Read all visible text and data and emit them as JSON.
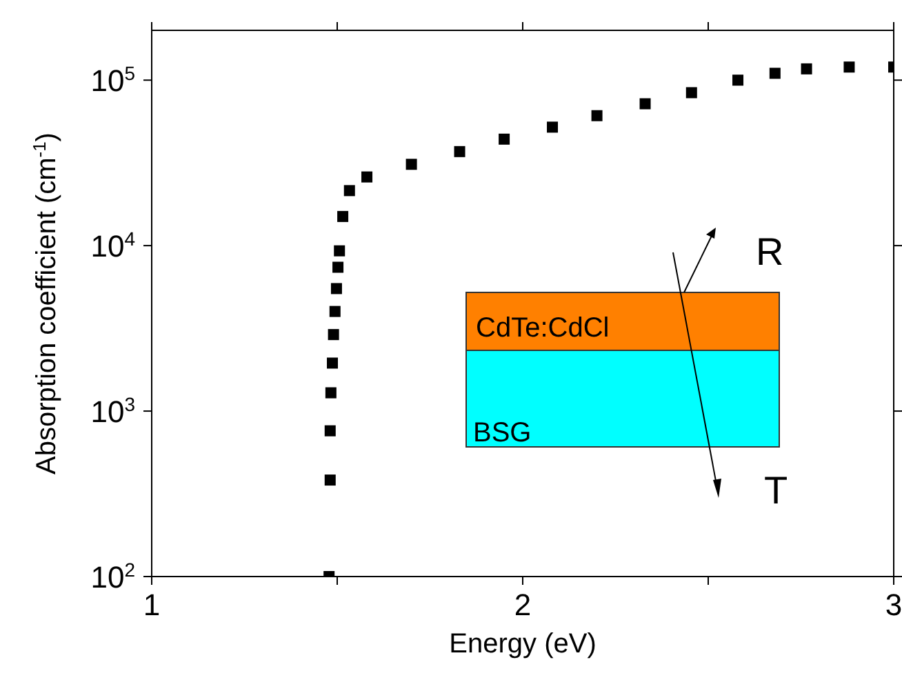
{
  "chart_data": {
    "type": "scatter",
    "xlabel": "Energy (eV)",
    "ylabel": "Absorption coefficient (cm$^{-1}$)",
    "x": [
      1.478,
      1.481,
      1.481,
      1.483,
      1.487,
      1.49,
      1.494,
      1.498,
      1.502,
      1.506,
      1.515,
      1.533,
      1.58,
      1.7,
      1.83,
      1.95,
      2.08,
      2.2,
      2.33,
      2.455,
      2.58,
      2.68,
      2.765,
      2.88,
      3.0
    ],
    "series": [
      {
        "color": "#000000",
        "values": [
          100,
          383,
          760,
          1290,
          1950,
          2900,
          4000,
          5500,
          7400,
          9300,
          15000,
          21500,
          26000,
          31000,
          37000,
          44000,
          52000,
          61000,
          72000,
          84000,
          100000,
          110000,
          117000,
          120000,
          120000
        ]
      }
    ],
    "marker": "square",
    "log": "y",
    "xlim": [
      1,
      3
    ],
    "xticks": [
      1,
      {
        "value": 1.5,
        "label": null
      },
      2,
      {
        "value": 2.5,
        "label": null
      },
      3
    ],
    "ylim": [
      100,
      200000
    ],
    "yticks": [
      {
        "value": 100,
        "label": "10$^{2}$"
      },
      {
        "value": 1000,
        "label": "10$^{3}$"
      },
      {
        "value": 10000,
        "label": "10$^{4}$"
      },
      {
        "value": 100000,
        "label": "10$^{5}$"
      }
    ],
    "annotations": [
      "CdTe:CdCl",
      "BSG",
      "R",
      "T"
    ]
  }
}
